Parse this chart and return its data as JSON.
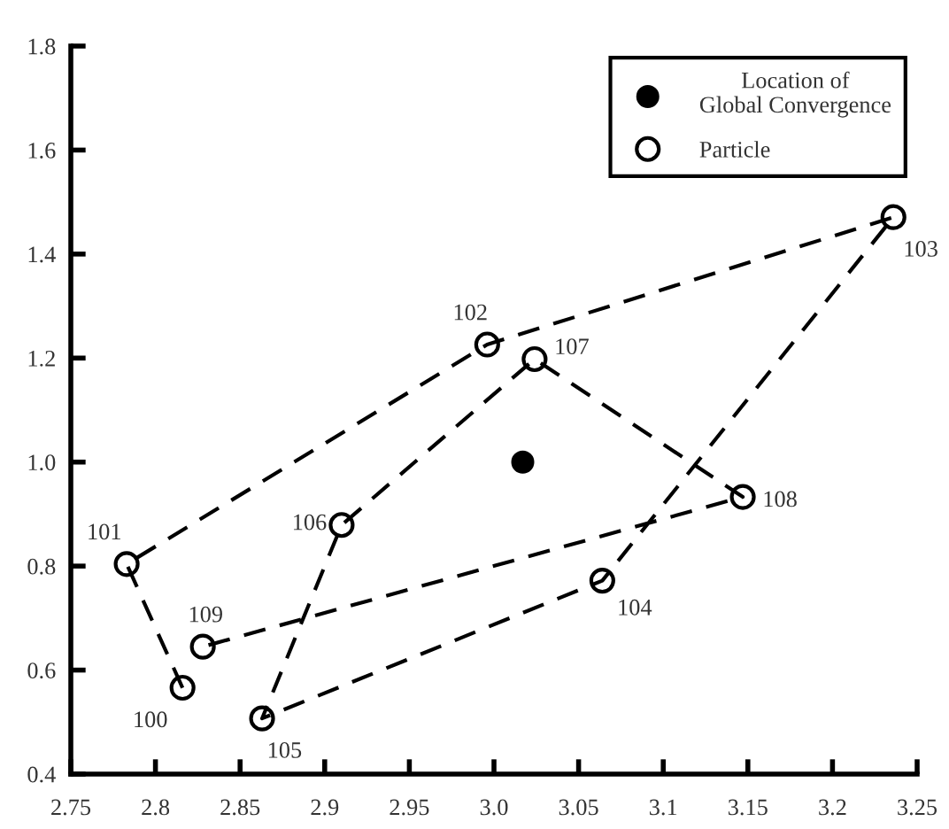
{
  "chart_data": {
    "type": "line",
    "x": [
      2.816,
      2.783,
      2.996,
      3.236,
      3.064,
      2.863,
      2.91,
      3.024,
      3.147,
      2.828
    ],
    "series": [
      {
        "name": "Location of\nGlobal Convergence",
        "type": "scatter",
        "color": "#000000",
        "x": [
          3.017
        ],
        "values": [
          1.0
        ],
        "marker": "circle"
      },
      {
        "name": "Particle",
        "type": "line",
        "color": "#000000",
        "values": [
          0.566,
          0.804,
          1.226,
          1.471,
          0.772,
          0.507,
          0.879,
          1.198,
          0.933,
          0.645
        ],
        "marker": "circle",
        "line_style": "dashed"
      }
    ],
    "annotations": [
      {
        "text": "100",
        "x": 2.816,
        "y": 0.566
      },
      {
        "text": "101",
        "x": 2.783,
        "y": 0.804
      },
      {
        "text": "102",
        "x": 2.996,
        "y": 1.226
      },
      {
        "text": "103",
        "x": 3.236,
        "y": 1.471
      },
      {
        "text": "104",
        "x": 3.064,
        "y": 0.772
      },
      {
        "text": "105",
        "x": 2.863,
        "y": 0.507
      },
      {
        "text": "106",
        "x": 2.91,
        "y": 0.879
      },
      {
        "text": "107",
        "x": 3.024,
        "y": 1.198
      },
      {
        "text": "108",
        "x": 3.147,
        "y": 0.933
      },
      {
        "text": "109",
        "x": 2.828,
        "y": 0.645
      }
    ],
    "xlim": [
      2.75,
      3.25
    ],
    "xticks": [
      2.75,
      2.8,
      2.85,
      2.9,
      2.95,
      {
        "value": 3,
        "label": "3.0"
      },
      3.05,
      3.1,
      3.15,
      3.2,
      3.25
    ],
    "ylim": [
      0.4,
      1.8
    ],
    "yticks": [
      0.4,
      0.6,
      0.8,
      {
        "value": 1,
        "label": "1.0"
      },
      1.2,
      1.4,
      1.6,
      1.8
    ],
    "legend": "top right",
    "grid": false
  }
}
